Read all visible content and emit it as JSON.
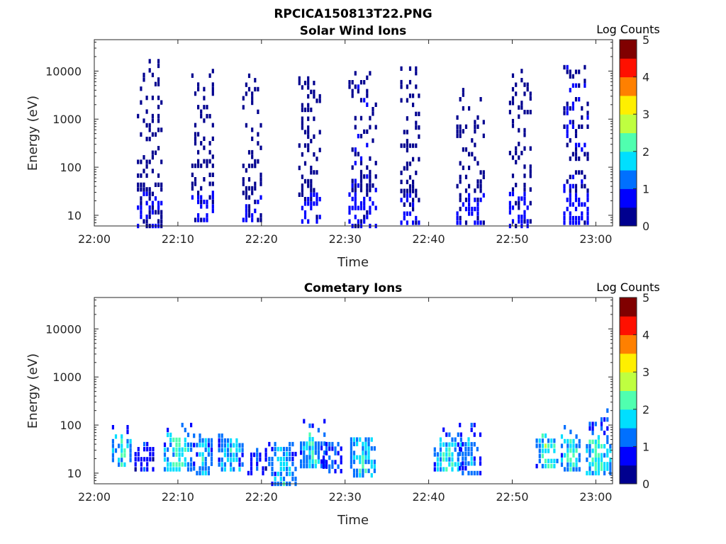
{
  "figure": {
    "title": "RPCICA150813T22.PNG"
  },
  "colormap": [
    "#00008f",
    "#0000ff",
    "#0070ff",
    "#00dfff",
    "#50ffaf",
    "#bfff40",
    "#ffef00",
    "#ff8000",
    "#ff1000",
    "#800000"
  ],
  "chart_data": [
    {
      "type": "heatmap",
      "title": "Solar Wind Ions",
      "xlabel": "Time",
      "ylabel": "Energy (eV)",
      "x_ticks": [
        "22:00",
        "22:10",
        "22:20",
        "22:30",
        "22:40",
        "22:50",
        "23:00"
      ],
      "x_tick_minutes": [
        0,
        10,
        20,
        30,
        40,
        50,
        60
      ],
      "xlim_minutes": [
        0,
        62
      ],
      "y_scale": "log",
      "y_ticks": [
        "10",
        "100",
        "1000",
        "10000"
      ],
      "y_tick_values": [
        10,
        100,
        1000,
        10000
      ],
      "ylim": [
        6,
        45000
      ],
      "colorbar": {
        "label": "Log Counts",
        "ticks": [
          "0",
          "1",
          "2",
          "3",
          "4",
          "5"
        ],
        "range": [
          0,
          5
        ]
      },
      "bursts": [
        {
          "t": 6.3,
          "eMin": 6,
          "eMax": 16000,
          "level": 0.4,
          "dense": 0.55
        },
        {
          "t": 12.8,
          "eMin": 8,
          "eMax": 10000,
          "level": 0.45,
          "dense": 0.5
        },
        {
          "t": 18.9,
          "eMin": 8,
          "eMax": 8000,
          "level": 0.4,
          "dense": 0.45
        },
        {
          "t": 25.6,
          "eMin": 6,
          "eMax": 7000,
          "level": 0.45,
          "dense": 0.45
        },
        {
          "t": 31.6,
          "eMin": 6,
          "eMax": 9000,
          "level": 0.5,
          "dense": 0.5
        },
        {
          "t": 37.8,
          "eMin": 7,
          "eMax": 14000,
          "level": 0.45,
          "dense": 0.45
        },
        {
          "t": 44.5,
          "eMin": 7,
          "eMax": 5000,
          "level": 0.45,
          "dense": 0.45
        },
        {
          "t": 50.8,
          "eMin": 6,
          "eMax": 10000,
          "level": 0.45,
          "dense": 0.5
        },
        {
          "t": 57.3,
          "eMin": 7,
          "eMax": 12000,
          "level": 0.55,
          "dense": 0.55
        }
      ]
    },
    {
      "type": "heatmap",
      "title": "Cometary Ions",
      "xlabel": "Time",
      "ylabel": "Energy (eV)",
      "x_ticks": [
        "22:00",
        "22:10",
        "22:20",
        "22:30",
        "22:40",
        "22:50",
        "23:00"
      ],
      "x_tick_minutes": [
        0,
        10,
        20,
        30,
        40,
        50,
        60
      ],
      "xlim_minutes": [
        0,
        62
      ],
      "y_scale": "log",
      "y_ticks": [
        "10",
        "100",
        "1000",
        "10000"
      ],
      "y_tick_values": [
        10,
        100,
        1000,
        10000
      ],
      "ylim": [
        6,
        45000
      ],
      "colorbar": {
        "label": "Log Counts",
        "ticks": [
          "0",
          "1",
          "2",
          "3",
          "4",
          "5"
        ],
        "range": [
          0,
          5
        ]
      },
      "bursts": [
        {
          "t": 3.3,
          "eMin": 15,
          "eMax": 90,
          "level": 1.7,
          "dense": 0.65
        },
        {
          "t": 6.0,
          "eMin": 12,
          "eMax": 40,
          "level": 0.8,
          "dense": 0.5
        },
        {
          "t": 9.5,
          "eMin": 12,
          "eMax": 100,
          "level": 1.9,
          "dense": 0.7
        },
        {
          "t": 13.0,
          "eMin": 10,
          "eMax": 60,
          "level": 1.5,
          "dense": 0.6
        },
        {
          "t": 16.0,
          "eMin": 12,
          "eMax": 60,
          "level": 1.6,
          "dense": 0.6
        },
        {
          "t": 19.5,
          "eMin": 10,
          "eMax": 30,
          "level": 0.9,
          "dense": 0.55
        },
        {
          "t": 22.0,
          "eMin": 6,
          "eMax": 40,
          "level": 1.5,
          "dense": 0.6
        },
        {
          "t": 25.8,
          "eMin": 14,
          "eMax": 120,
          "level": 1.6,
          "dense": 0.6
        },
        {
          "t": 28.5,
          "eMin": 11,
          "eMax": 40,
          "level": 1.1,
          "dense": 0.55
        },
        {
          "t": 31.8,
          "eMin": 9,
          "eMax": 50,
          "level": 1.7,
          "dense": 0.6
        },
        {
          "t": 41.8,
          "eMin": 12,
          "eMax": 80,
          "level": 1.7,
          "dense": 0.65
        },
        {
          "t": 44.8,
          "eMin": 10,
          "eMax": 100,
          "level": 1.3,
          "dense": 0.6
        },
        {
          "t": 54.0,
          "eMin": 14,
          "eMax": 60,
          "level": 1.9,
          "dense": 0.65
        },
        {
          "t": 57.0,
          "eMin": 12,
          "eMax": 90,
          "level": 1.9,
          "dense": 0.7
        },
        {
          "t": 60.0,
          "eMin": 10,
          "eMax": 200,
          "level": 1.9,
          "dense": 0.7
        }
      ]
    }
  ]
}
